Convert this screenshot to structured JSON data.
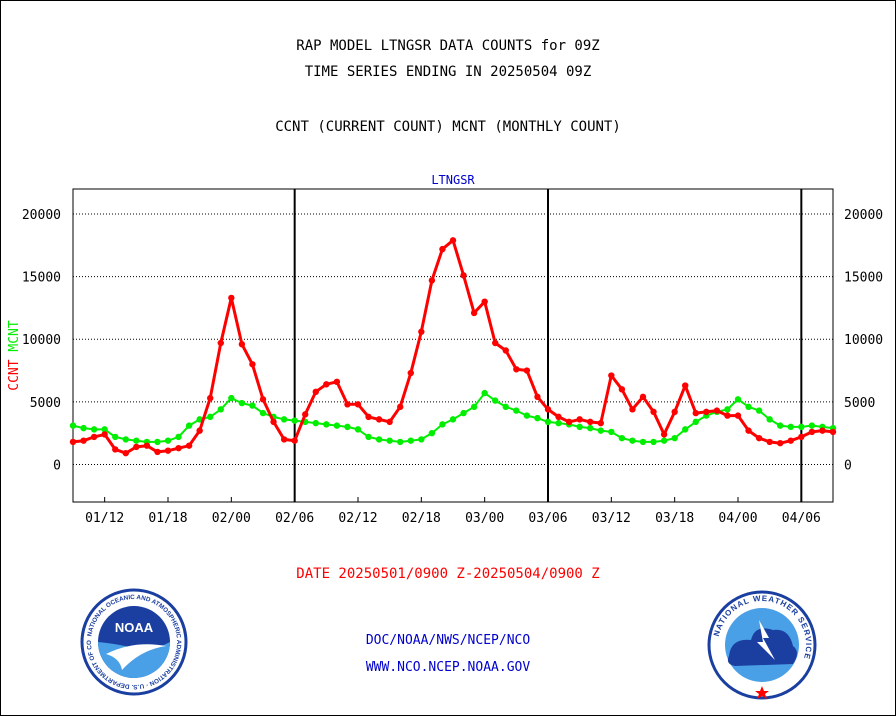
{
  "header": {
    "title_line1": "RAP MODEL LTNGSR DATA COUNTS for 09Z",
    "title_line2": "TIME SERIES ENDING IN 20250504 09Z",
    "subtitle": "CCNT (CURRENT COUNT) MCNT (MONTHLY COUNT)"
  },
  "footer": {
    "date_range": "DATE 20250501/0900 Z-20250504/0900 Z",
    "link1": "DOC/NOAA/NWS/NCEP/NCO",
    "link2": "WWW.NCO.NCEP.NOAA.GOV"
  },
  "logos": {
    "noaa": {
      "center_text": "NOAA",
      "ring_text": "NATIONAL OCEANIC AND ATMOSPHERIC ADMINISTRATION · U.S. DEPARTMENT OF COMMERCE"
    },
    "nws": {
      "ring_text": "NATIONAL WEATHER SERVICE"
    }
  },
  "chart_data": {
    "type": "line",
    "title": "LTNGSR",
    "ylabel_left": [
      "CCNT",
      "MCNT"
    ],
    "ylim": [
      -3000,
      22000
    ],
    "yticks": [
      0,
      5000,
      10000,
      15000,
      20000
    ],
    "xticks": [
      {
        "label": "01/12",
        "i": 3
      },
      {
        "label": "01/18",
        "i": 9
      },
      {
        "label": "02/00",
        "i": 15
      },
      {
        "label": "02/06",
        "i": 21
      },
      {
        "label": "02/12",
        "i": 27
      },
      {
        "label": "02/18",
        "i": 33
      },
      {
        "label": "03/00",
        "i": 39
      },
      {
        "label": "03/06",
        "i": 45
      },
      {
        "label": "03/12",
        "i": 51
      },
      {
        "label": "03/18",
        "i": 57
      },
      {
        "label": "04/00",
        "i": 63
      },
      {
        "label": "04/06",
        "i": 69
      }
    ],
    "day_boundaries": [
      21,
      45,
      69
    ],
    "grid": true,
    "series": [
      {
        "name": "CCNT",
        "color": "#ff0000",
        "values": [
          1800,
          1900,
          2200,
          2400,
          1200,
          900,
          1400,
          1500,
          1000,
          1100,
          1300,
          1500,
          2700,
          5300,
          9700,
          13300,
          9600,
          8000,
          5200,
          3400,
          2000,
          1900,
          4000,
          5800,
          6400,
          6600,
          4800,
          4800,
          3800,
          3600,
          3400,
          4600,
          7300,
          10600,
          14700,
          17200,
          17900,
          15100,
          12100,
          13000,
          9700,
          9100,
          7600,
          7500,
          5400,
          4400,
          3800,
          3400,
          3600,
          3400,
          3300,
          7100,
          6000,
          4400,
          5400,
          4200,
          2400,
          4200,
          6300,
          4100,
          4200,
          4300,
          3900,
          3900,
          2700,
          2100,
          1800,
          1700,
          1900,
          2200,
          2600,
          2700,
          2600
        ],
        "lw": 3
      },
      {
        "name": "MCNT",
        "color": "#00ee00",
        "values": [
          3100,
          2900,
          2800,
          2800,
          2200,
          2000,
          1900,
          1800,
          1800,
          1900,
          2200,
          3100,
          3600,
          3800,
          4400,
          5300,
          4900,
          4700,
          4100,
          3800,
          3600,
          3500,
          3400,
          3300,
          3200,
          3100,
          3000,
          2800,
          2200,
          2000,
          1900,
          1800,
          1900,
          2000,
          2500,
          3200,
          3600,
          4100,
          4600,
          5700,
          5100,
          4600,
          4300,
          3900,
          3700,
          3400,
          3300,
          3200,
          3000,
          2900,
          2700,
          2600,
          2100,
          1900,
          1800,
          1800,
          1900,
          2100,
          2800,
          3400,
          3900,
          4200,
          4400,
          5200,
          4600,
          4300,
          3600,
          3100,
          3000,
          3000,
          3100,
          3000,
          2900
        ],
        "lw": 2
      }
    ]
  }
}
